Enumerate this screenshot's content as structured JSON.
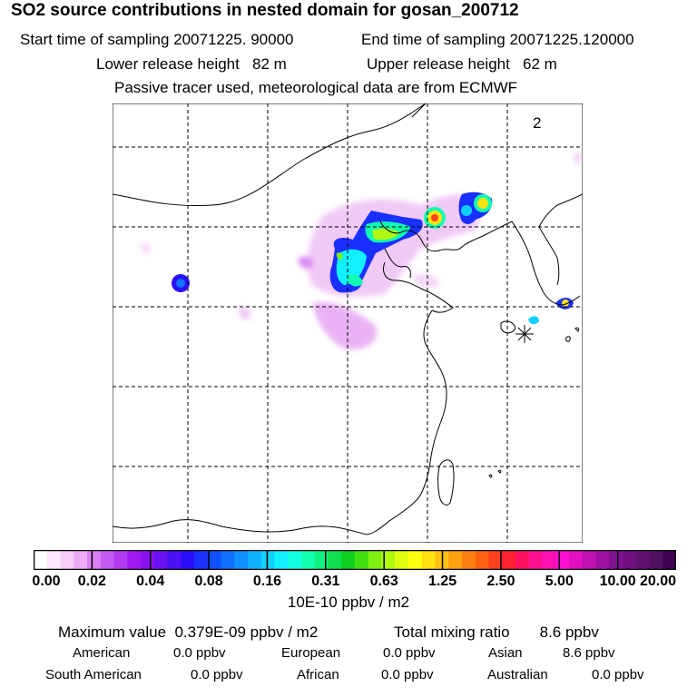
{
  "header": {
    "title": "SO2 source contributions in nested domain for gosan_200712",
    "start_label": "Start time of sampling 20071225. 90000",
    "end_label": "End time of sampling 20071225.120000",
    "lower_height_label": "Lower release height   82 m",
    "upper_height_label": "Upper release height   62 m",
    "tracer_note": "Passive tracer used, meteorological data are from ECMWF"
  },
  "map": {
    "panel_number": "2",
    "receptor": "gosan"
  },
  "colorbar": {
    "ticks": [
      "0.00",
      "0.02",
      "0.04",
      "0.08",
      "0.16",
      "0.31",
      "0.63",
      "1.25",
      "2.50",
      "5.00",
      "10.00",
      "20.00"
    ],
    "colors": [
      "#ffffff",
      "#fbe6fb",
      "#f6ccf8",
      "#eeaaf6",
      "#d880f4",
      "#c45cf2",
      "#b43cf0",
      "#a018ee",
      "#8a10f0",
      "#6a10f2",
      "#4a10f6",
      "#2a10fa",
      "#1a30ff",
      "#1050ff",
      "#1070ff",
      "#1090ff",
      "#10b0ff",
      "#10d0ff",
      "#10f0ff",
      "#10ffe0",
      "#10ffb0",
      "#10f080",
      "#10e050",
      "#10d020",
      "#40e010",
      "#80f010",
      "#b0f810",
      "#e0ff10",
      "#ffff10",
      "#ffe010",
      "#ffc010",
      "#ffa010",
      "#ff8010",
      "#ff6010",
      "#ff4020",
      "#ff2030",
      "#ff1060",
      "#ff1090",
      "#ff10b0",
      "#ff10d0",
      "#e010c0",
      "#c010b0",
      "#a010a0",
      "#801090",
      "#701080",
      "#601070",
      "#501060",
      "#400050"
    ],
    "units": "10E-10 ppbv / m2"
  },
  "summary": {
    "maximum": "Maximum value  0.379E-09 ppbv / m2",
    "total": "Total mixing ratio       8.6 ppbv",
    "regions": [
      {
        "name": "American",
        "value": "0.0 ppbv"
      },
      {
        "name": "European",
        "value": "0.0 ppbv"
      },
      {
        "name": "Asian",
        "value": "8.6 ppbv"
      },
      {
        "name": "South American",
        "value": "0.0 ppbv"
      },
      {
        "name": "African",
        "value": "0.0 ppbv"
      },
      {
        "name": "Australian",
        "value": "0.0 ppbv"
      }
    ]
  }
}
